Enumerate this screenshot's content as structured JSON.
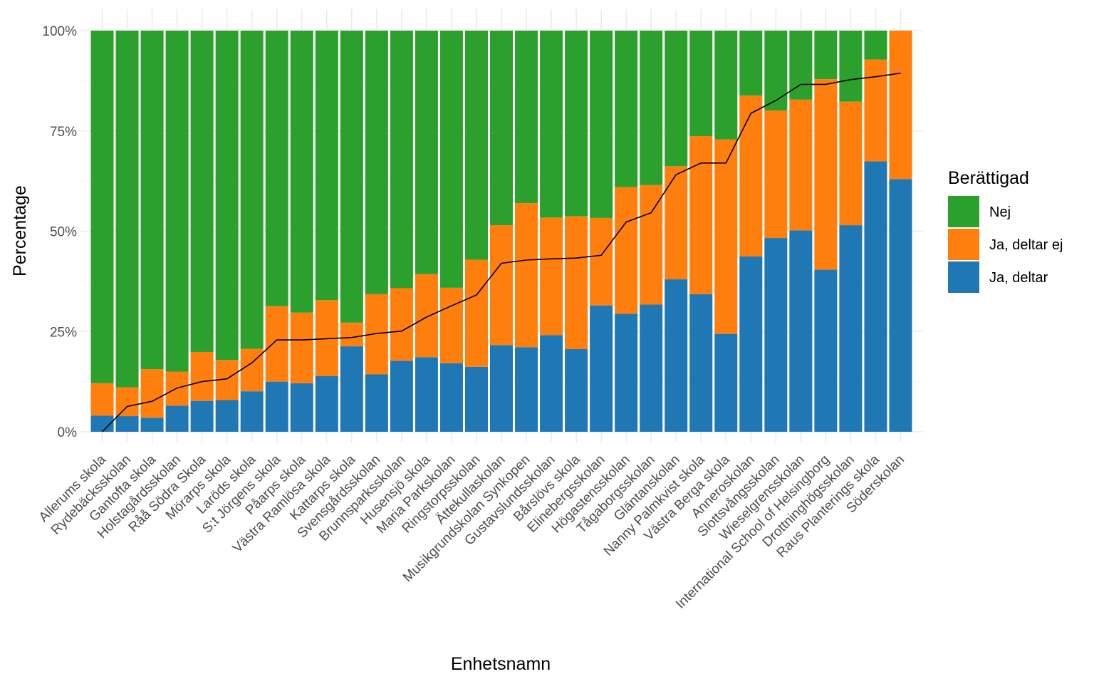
{
  "chart_data": {
    "type": "bar",
    "stacked": true,
    "xlabel": "Enhetsnamn",
    "ylabel": "Percentage",
    "ylim": [
      0,
      100
    ],
    "yticks": [
      "0%",
      "25%",
      "50%",
      "75%",
      "100%"
    ],
    "grid": true,
    "legend": {
      "title": "Berättigad",
      "placement": "right"
    },
    "categories": [
      "Allerums skola",
      "Rydebäcksskolan",
      "Gantofta skola",
      "Holstagårdsskolan",
      "Råå Södra Skola",
      "Mörarps skola",
      "Laröds skola",
      "S:t Jörgens skola",
      "Påarps skola",
      "Västra Ramlösa skola",
      "Kattarps skola",
      "Svensgårdsskolan",
      "Brunnsparksskolan",
      "Husensjö skola",
      "Maria Parkskolan",
      "Ringstorpsskolan",
      "Ättekullaskolan",
      "Musikgrundskolan Synkopen",
      "Gustavslundsskolan",
      "Bårslövs skola",
      "Elinebergsskolan",
      "Högastensskolan",
      "Tågaborgsskolan",
      "Gläntanskolan",
      "Nanny Palmkvist skola",
      "Västra Berga skola",
      "Anneroskolan",
      "Slottsvångsskolan",
      "Wieselgrensskolan",
      "International School of Helsingborg",
      "Drottninghögsskolan",
      "Raus Planterings skola",
      "Söderskolan"
    ],
    "series": [
      {
        "name": "Ja, deltar",
        "color": "#1f77b4",
        "values": [
          4.0,
          3.9,
          3.5,
          6.5,
          7.7,
          7.9,
          10.1,
          12.5,
          12.1,
          13.9,
          21.3,
          14.3,
          17.7,
          18.6,
          17.1,
          16.2,
          21.6,
          21.1,
          24.1,
          20.6,
          31.5,
          29.4,
          31.7,
          38.0,
          34.3,
          24.4,
          43.7,
          48.3,
          50.2,
          40.4,
          51.5,
          67.4,
          63.0
        ]
      },
      {
        "name": "Ja, deltar ej",
        "color": "#ff7f0e",
        "values": [
          8.1,
          7.2,
          12.1,
          8.5,
          12.2,
          10.0,
          10.6,
          18.8,
          17.6,
          18.9,
          5.9,
          20.0,
          18.1,
          20.7,
          18.8,
          26.7,
          29.9,
          35.9,
          29.3,
          33.1,
          21.8,
          31.6,
          29.8,
          28.2,
          39.4,
          48.5,
          40.1,
          31.8,
          32.6,
          47.5,
          30.8,
          25.4,
          37.0
        ]
      },
      {
        "name": "Nej",
        "color": "#2ca02c",
        "values": [
          87.9,
          88.9,
          84.4,
          85.0,
          80.1,
          82.1,
          79.3,
          68.7,
          70.3,
          67.2,
          72.8,
          65.7,
          64.2,
          60.7,
          64.1,
          57.1,
          48.5,
          43.0,
          46.6,
          46.3,
          46.7,
          39.0,
          38.5,
          33.8,
          26.3,
          27.1,
          16.2,
          19.9,
          17.2,
          12.1,
          17.7,
          7.2,
          0.0
        ]
      }
    ],
    "line": {
      "color": "#000000",
      "values": [
        0.0,
        6.3,
        7.6,
        10.9,
        12.5,
        13.2,
        17.2,
        22.9,
        22.9,
        23.2,
        23.5,
        24.5,
        25.1,
        28.6,
        31.4,
        34.1,
        42.0,
        42.8,
        43.1,
        43.3,
        44.0,
        52.3,
        54.6,
        64.1,
        67.0,
        67.0,
        79.4,
        82.6,
        86.6,
        86.6,
        87.8,
        88.5,
        89.4
      ]
    }
  }
}
